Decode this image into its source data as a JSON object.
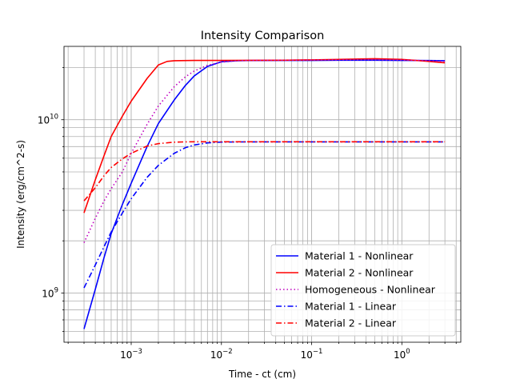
{
  "chart_data": {
    "type": "line",
    "title": "Intensity Comparison",
    "xlabel": "Time - ct (cm)",
    "ylabel": "Intensity (erg/cm^2-s)",
    "xscale": "log",
    "yscale": "log",
    "xlim": [
      0.00018,
      4.5
    ],
    "ylim": [
      520000000,
      26500000000
    ],
    "grid": "major and minor",
    "legend_position": "lower-right",
    "x_major_ticks": [
      {
        "value": 0.001,
        "base": "10",
        "exp": "−3"
      },
      {
        "value": 0.01,
        "base": "10",
        "exp": "−2"
      },
      {
        "value": 0.1,
        "base": "10",
        "exp": "−1"
      },
      {
        "value": 1,
        "base": "10",
        "exp": "0"
      }
    ],
    "y_major_ticks": [
      {
        "value": 1000000000,
        "base": "10",
        "exp": "9"
      },
      {
        "value": 10000000000,
        "base": "10",
        "exp": "10"
      }
    ],
    "series": [
      {
        "name": "Material 1 - Nonlinear",
        "color": "#0000ff",
        "dash": "solid",
        "x": [
          0.0003,
          0.0004,
          0.0005,
          0.0006,
          0.0008,
          0.001,
          0.0015,
          0.002,
          0.003,
          0.004,
          0.005,
          0.007,
          0.01,
          0.015,
          0.02,
          0.05,
          0.1,
          0.2,
          0.5,
          1,
          2,
          3
        ],
        "y": [
          620000000,
          1050000000,
          1600000000,
          2200000000,
          3250000000,
          4300000000,
          7000000000,
          9500000000,
          13000000000,
          15800000000,
          17900000000,
          20300000000,
          21600000000,
          21900000000,
          21950000000,
          22000000000,
          22000000000,
          22050000000,
          22050000000,
          22000000000,
          21950000000,
          21900000000
        ]
      },
      {
        "name": "Material 2 - Nonlinear",
        "color": "#ff0000",
        "dash": "solid",
        "x": [
          0.0003,
          0.0004,
          0.0005,
          0.0006,
          0.0008,
          0.001,
          0.0015,
          0.002,
          0.0025,
          0.003,
          0.005,
          0.01,
          0.05,
          0.1,
          0.2,
          0.5,
          1,
          2,
          3
        ],
        "y": [
          2900000000,
          4500000000,
          6200000000,
          8000000000,
          10500000000,
          12800000000,
          17300000000,
          20700000000,
          21700000000,
          21900000000,
          22000000000,
          22000000000,
          22050000000,
          22150000000,
          22300000000,
          22500000000,
          22300000000,
          21700000000,
          21300000000
        ]
      },
      {
        "name": "Homogeneous - Nonlinear",
        "color": "#c000c0",
        "dash": "dotted",
        "x": [
          0.0003,
          0.0004,
          0.0005,
          0.0006,
          0.0008,
          0.001,
          0.0015,
          0.002,
          0.003,
          0.004,
          0.005,
          0.007,
          0.01,
          0.015,
          0.02,
          0.05,
          0.1,
          0.2,
          0.5,
          1,
          2,
          3
        ],
        "y": [
          1950000000,
          2700000000,
          3400000000,
          4000000000,
          5000000000,
          6400000000,
          9400000000,
          12000000000,
          15500000000,
          17700000000,
          19100000000,
          20600000000,
          21500000000,
          21900000000,
          22000000000,
          22050000000,
          22100000000,
          22150000000,
          22200000000,
          22100000000,
          21900000000,
          21700000000
        ]
      },
      {
        "name": "Material 1 - Linear",
        "color": "#0000ff",
        "dash": "dashdot",
        "x": [
          0.0003,
          0.0004,
          0.0005,
          0.0006,
          0.0008,
          0.001,
          0.0015,
          0.002,
          0.003,
          0.004,
          0.005,
          0.007,
          0.01,
          0.02,
          0.05,
          0.1,
          0.5,
          1,
          3
        ],
        "y": [
          1070000000,
          1450000000,
          1850000000,
          2250000000,
          2900000000,
          3500000000,
          4650000000,
          5450000000,
          6400000000,
          6900000000,
          7150000000,
          7350000000,
          7430000000,
          7450000000,
          7450000000,
          7450000000,
          7450000000,
          7450000000,
          7450000000
        ]
      },
      {
        "name": "Material 2 - Linear",
        "color": "#ff0000",
        "dash": "dashdot",
        "x": [
          0.0003,
          0.0004,
          0.0005,
          0.0006,
          0.0008,
          0.001,
          0.0015,
          0.002,
          0.003,
          0.004,
          0.005,
          0.007,
          0.01,
          0.02,
          0.05,
          0.1,
          0.5,
          1,
          3
        ],
        "y": [
          3400000000,
          4050000000,
          4750000000,
          5300000000,
          5950000000,
          6400000000,
          7050000000,
          7280000000,
          7420000000,
          7450000000,
          7460000000,
          7460000000,
          7460000000,
          7460000000,
          7460000000,
          7460000000,
          7460000000,
          7460000000,
          7460000000
        ]
      }
    ]
  }
}
